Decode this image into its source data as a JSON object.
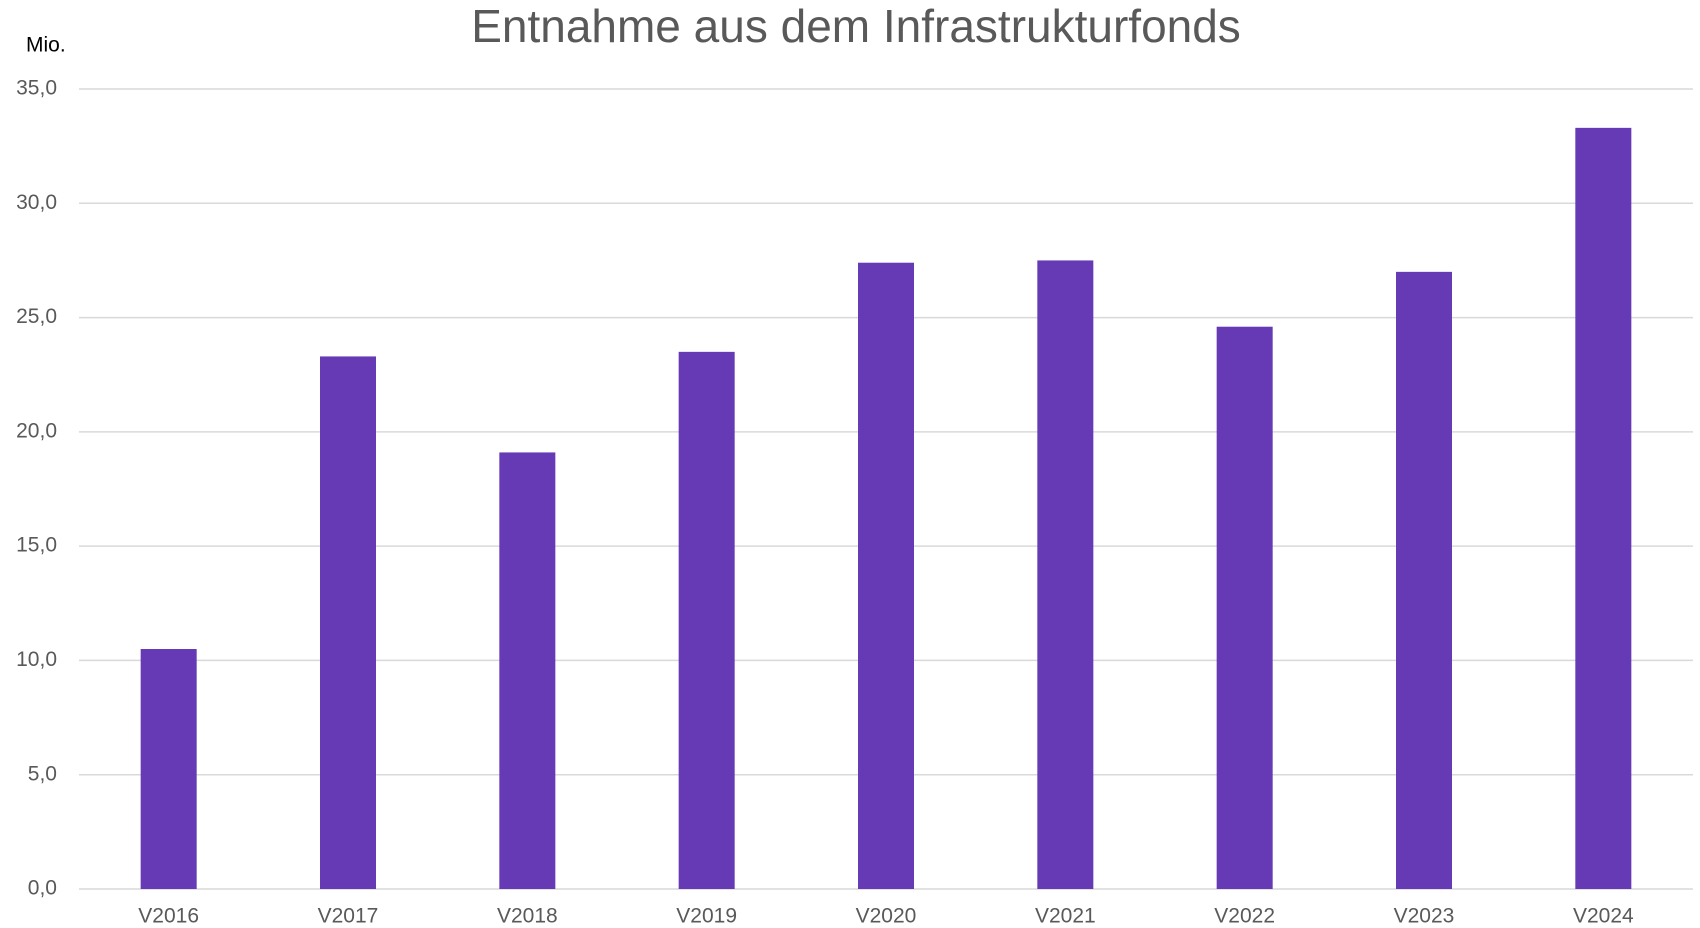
{
  "chart_data": {
    "type": "bar",
    "title": "Entnahme aus dem Infrastrukturfonds",
    "y_label": "Mio.",
    "categories": [
      "V2016",
      "V2017",
      "V2018",
      "V2019",
      "V2020",
      "V2021",
      "V2022",
      "V2023",
      "V2024"
    ],
    "values": [
      10.5,
      23.3,
      19.1,
      23.5,
      27.4,
      27.5,
      24.6,
      27.0,
      33.3
    ],
    "color": "#6639b5",
    "ylim": [
      0,
      35
    ],
    "yticks": [
      {
        "value": 0,
        "label": "0,0"
      },
      {
        "value": 5,
        "label": "5,0"
      },
      {
        "value": 10,
        "label": "10,0"
      },
      {
        "value": 15,
        "label": "15,0"
      },
      {
        "value": 20,
        "label": "20,0"
      },
      {
        "value": 25,
        "label": "25,0"
      },
      {
        "value": 30,
        "label": "30,0"
      },
      {
        "value": 35,
        "label": "35,0"
      }
    ],
    "grid": true
  }
}
